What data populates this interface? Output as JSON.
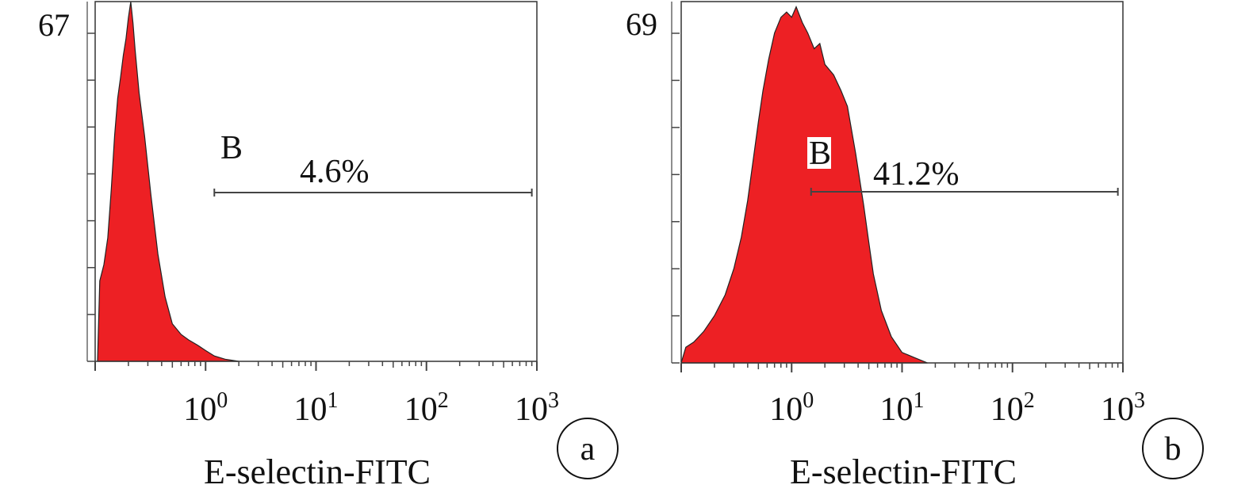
{
  "chart_data": [
    {
      "type": "histogram",
      "panel_label": "a",
      "xlabel": "E-selectin-FITC",
      "x_scale": "log",
      "xlim": [
        0.1,
        1000
      ],
      "x_tick_labels": [
        {
          "base": "10",
          "exp": "0"
        },
        {
          "base": "10",
          "exp": "1"
        },
        {
          "base": "10",
          "exp": "2"
        },
        {
          "base": "10",
          "exp": "3"
        }
      ],
      "ylim": [
        0,
        67
      ],
      "y_max_label": "67",
      "y_ticks": 8,
      "fill_color": "#ed2024",
      "gate": {
        "label": "B",
        "percent": "4.6%",
        "x_start": 1.2,
        "x_end": 900
      },
      "points": [
        [
          0.105,
          0
        ],
        [
          0.11,
          15
        ],
        [
          0.12,
          18
        ],
        [
          0.13,
          23
        ],
        [
          0.14,
          32
        ],
        [
          0.15,
          42
        ],
        [
          0.16,
          49
        ],
        [
          0.17,
          53
        ],
        [
          0.18,
          57
        ],
        [
          0.19,
          60
        ],
        [
          0.2,
          64
        ],
        [
          0.21,
          67
        ],
        [
          0.22,
          63
        ],
        [
          0.23,
          58
        ],
        [
          0.25,
          50
        ],
        [
          0.28,
          42
        ],
        [
          0.32,
          31
        ],
        [
          0.37,
          20
        ],
        [
          0.43,
          12
        ],
        [
          0.5,
          7
        ],
        [
          0.6,
          5
        ],
        [
          0.7,
          4
        ],
        [
          0.85,
          3
        ],
        [
          1.0,
          2
        ],
        [
          1.2,
          1
        ],
        [
          1.5,
          0.4
        ],
        [
          2.0,
          0
        ]
      ]
    },
    {
      "type": "histogram",
      "panel_label": "b",
      "xlabel": "E-selectin-FITC",
      "x_scale": "log",
      "xlim": [
        0.1,
        1000
      ],
      "x_tick_labels": [
        {
          "base": "10",
          "exp": "0"
        },
        {
          "base": "10",
          "exp": "1"
        },
        {
          "base": "10",
          "exp": "2"
        },
        {
          "base": "10",
          "exp": "3"
        }
      ],
      "ylim": [
        0,
        69
      ],
      "y_max_label": "69",
      "y_ticks": 8,
      "fill_color": "#ed2024",
      "gate": {
        "label": "B",
        "percent": "41.2%",
        "x_start": 1.5,
        "x_end": 900
      },
      "points": [
        [
          0.1,
          0
        ],
        [
          0.11,
          3
        ],
        [
          0.13,
          4
        ],
        [
          0.16,
          6
        ],
        [
          0.2,
          9
        ],
        [
          0.25,
          13
        ],
        [
          0.3,
          18
        ],
        [
          0.35,
          24
        ],
        [
          0.4,
          31
        ],
        [
          0.45,
          39
        ],
        [
          0.5,
          46
        ],
        [
          0.55,
          52
        ],
        [
          0.62,
          58
        ],
        [
          0.7,
          63
        ],
        [
          0.8,
          66
        ],
        [
          0.9,
          67
        ],
        [
          1.0,
          66
        ],
        [
          1.1,
          68
        ],
        [
          1.25,
          65
        ],
        [
          1.4,
          63
        ],
        [
          1.6,
          60
        ],
        [
          1.8,
          61
        ],
        [
          2.0,
          57
        ],
        [
          2.4,
          55
        ],
        [
          2.8,
          52
        ],
        [
          3.2,
          49
        ],
        [
          3.8,
          40
        ],
        [
          4.5,
          30
        ],
        [
          5.0,
          23
        ],
        [
          5.5,
          17
        ],
        [
          6.5,
          10
        ],
        [
          8.0,
          5
        ],
        [
          10.0,
          2
        ],
        [
          13.0,
          1
        ],
        [
          17.0,
          0
        ]
      ]
    }
  ]
}
